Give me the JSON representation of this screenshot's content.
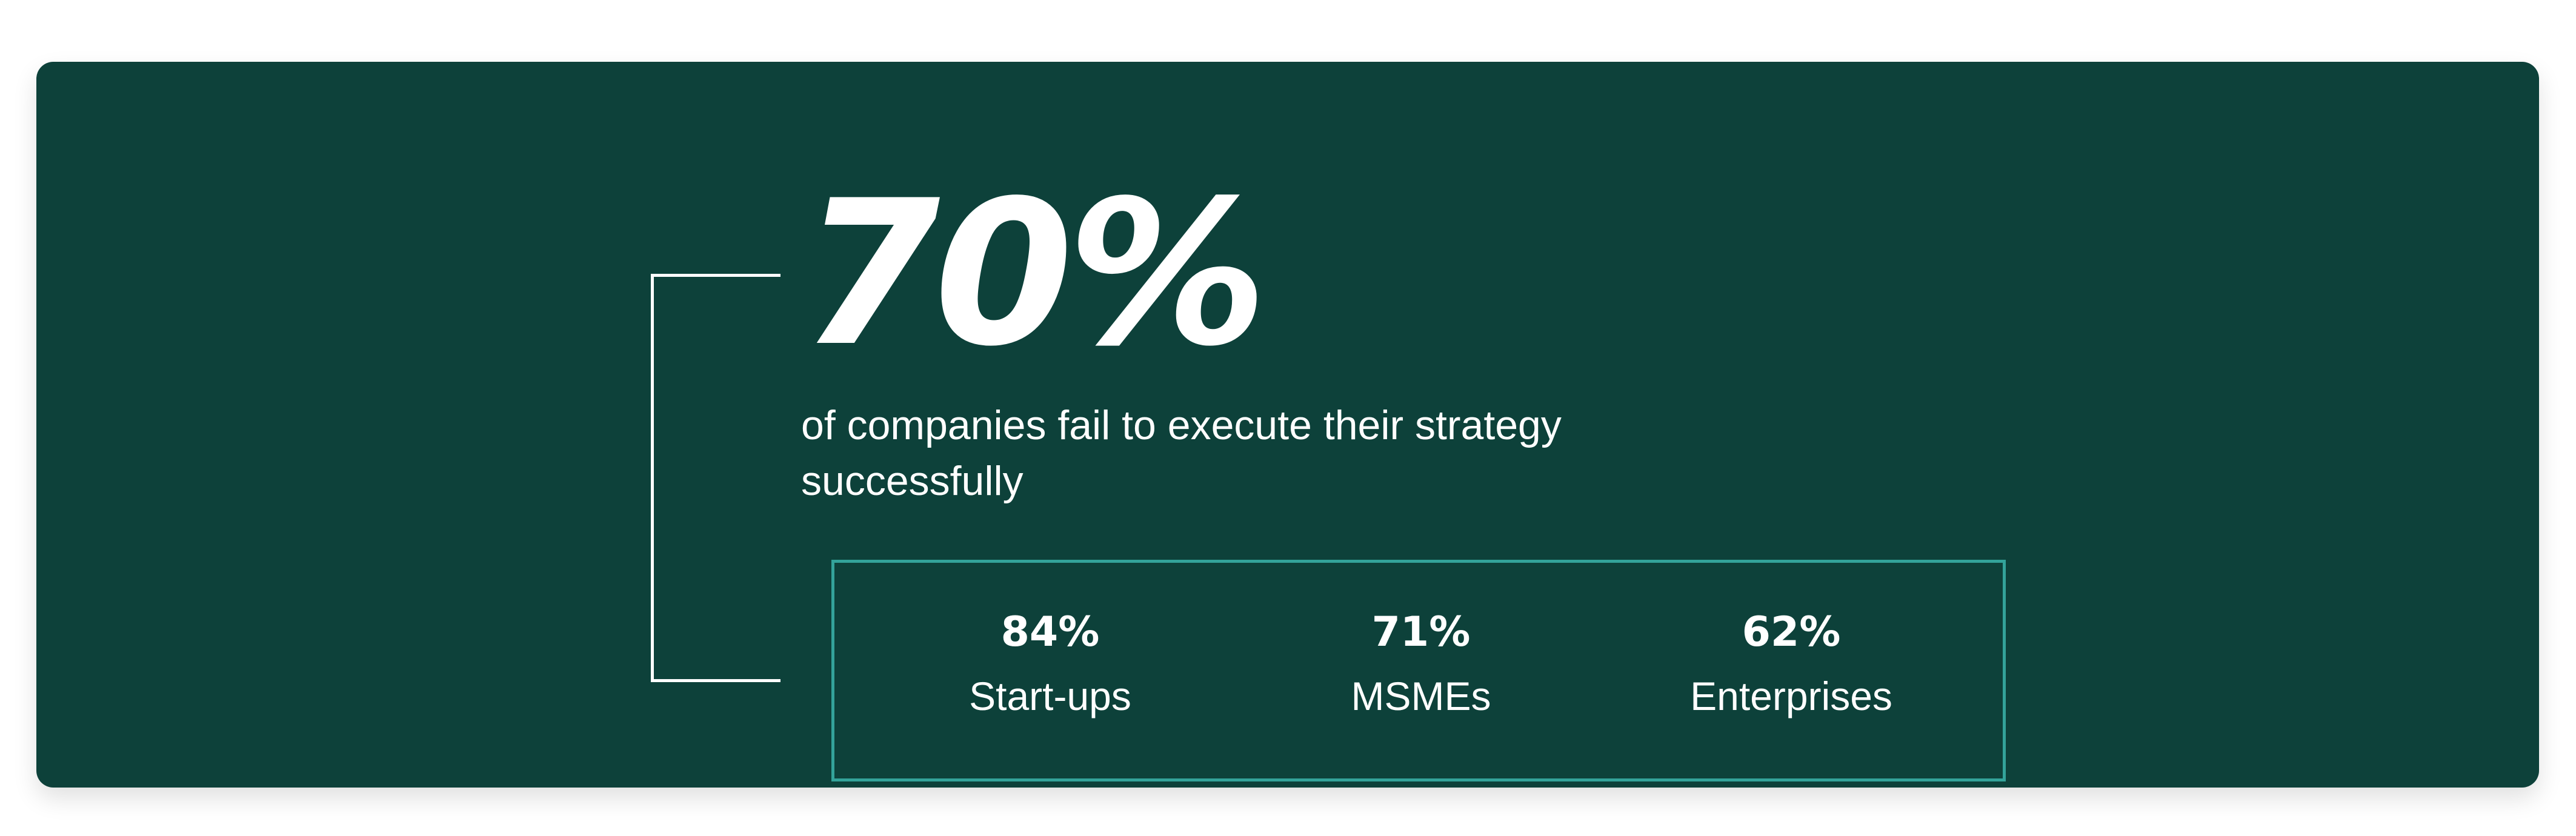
{
  "headline": {
    "value": "70%",
    "description": "of companies fail to execute their strategy successfully"
  },
  "stats": [
    {
      "value": "84%",
      "label": "Start-ups"
    },
    {
      "value": "71%",
      "label": "MSMEs"
    },
    {
      "value": "62%",
      "label": "Enterprises"
    }
  ],
  "colors": {
    "background": "#0d413a",
    "box_border": "#33a39a",
    "text": "#ffffff"
  }
}
